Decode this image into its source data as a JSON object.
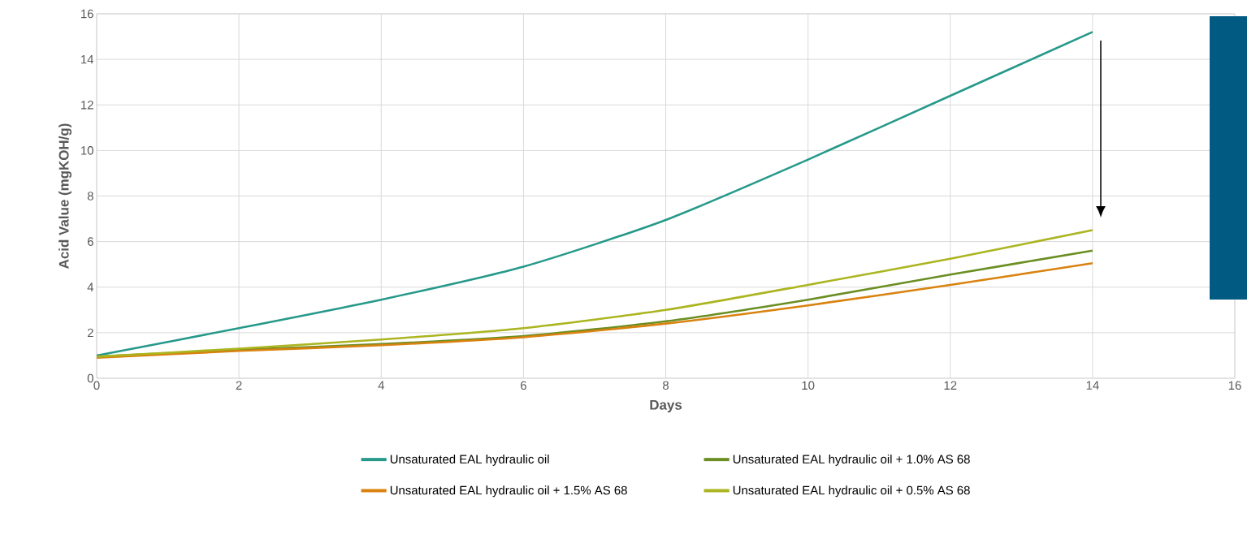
{
  "chart_data": {
    "type": "line",
    "xlabel": "Days",
    "ylabel": "Acid Value (mgKOH/g)",
    "xlim": [
      0,
      16
    ],
    "xticks": [
      0,
      2,
      4,
      6,
      8,
      10,
      12,
      14,
      16
    ],
    "ylim": [
      0,
      16
    ],
    "yticks": [
      0,
      2,
      4,
      6,
      8,
      10,
      12,
      14,
      16
    ],
    "grid": true,
    "legend": "bottom",
    "marker": "none",
    "line_style": "solid",
    "x": [
      0,
      2,
      4,
      6,
      8,
      10,
      12,
      14
    ],
    "series": [
      {
        "name": "Unsaturated EAL hydraulic oil",
        "color": "#26998a",
        "values": [
          1.0,
          2.2,
          3.45,
          4.9,
          6.95,
          9.6,
          12.4,
          15.2
        ]
      },
      {
        "name": "Unsaturated EAL hydraulic oil + 1.0% AS 68",
        "color": "#6b8e23",
        "values": [
          0.95,
          1.25,
          1.5,
          1.85,
          2.5,
          3.45,
          4.55,
          5.6
        ]
      },
      {
        "name": "Unsaturated EAL hydraulic oil + 1.5% AS 68",
        "color": "#d9820f",
        "values": [
          0.9,
          1.2,
          1.45,
          1.8,
          2.4,
          3.2,
          4.1,
          5.05
        ]
      },
      {
        "name": "Unsaturated EAL hydraulic oil + 0.5% AS 68",
        "color": "#abb520",
        "values": [
          0.95,
          1.3,
          1.7,
          2.2,
          3.0,
          4.1,
          5.25,
          6.5
        ]
      }
    ]
  }
}
